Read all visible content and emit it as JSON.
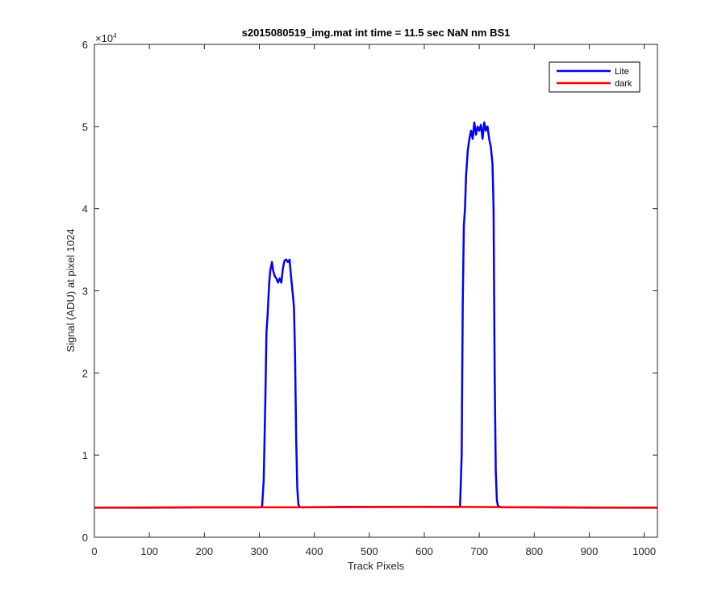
{
  "chart_data": {
    "type": "line",
    "title": "s2015080519_img.mat int time = 11.5 sec  NaN nm BS1",
    "xlabel": "Track Pixels",
    "ylabel": "Signal (ADU) at pixel 1024",
    "y_exponent_label": "×10",
    "y_exponent_power": "4",
    "xlim": [
      0,
      1024
    ],
    "ylim": [
      0,
      60000
    ],
    "xticks": [
      0,
      100,
      200,
      300,
      400,
      500,
      600,
      700,
      800,
      900,
      1000
    ],
    "xtick_labels": [
      "0",
      "100",
      "200",
      "300",
      "400",
      "500",
      "600",
      "700",
      "800",
      "900",
      "1000"
    ],
    "yticks": [
      0,
      10000,
      20000,
      30000,
      40000,
      50000,
      60000
    ],
    "ytick_labels": [
      "0",
      "1",
      "2",
      "3",
      "4",
      "5",
      "6"
    ],
    "grid": false,
    "legend_position": "top-right",
    "series": [
      {
        "name": "Lite",
        "color": "#0000ff",
        "x": [
          0,
          100,
          200,
          300,
          305,
          308,
          311,
          313,
          315,
          318,
          320,
          323,
          325,
          328,
          331,
          334,
          337,
          340,
          343,
          346,
          349,
          352,
          355,
          358,
          361,
          363,
          365,
          367,
          369,
          371,
          373,
          376,
          380,
          450,
          500,
          550,
          600,
          665,
          668,
          670,
          672,
          674,
          676,
          679,
          682,
          685,
          688,
          691,
          694,
          697,
          700,
          703,
          706,
          709,
          712,
          715,
          718,
          721,
          724,
          726,
          728,
          730,
          732,
          734,
          740,
          800,
          900,
          1024
        ],
        "y": [
          3600,
          3600,
          3650,
          3650,
          3700,
          7000,
          17000,
          25000,
          27000,
          31000,
          32500,
          33500,
          32500,
          31800,
          31500,
          31000,
          31500,
          31000,
          32800,
          33700,
          33800,
          33500,
          33800,
          31500,
          29500,
          28000,
          22000,
          12000,
          6000,
          4000,
          3700,
          3650,
          3650,
          3700,
          3700,
          3700,
          3700,
          3700,
          10000,
          29000,
          38000,
          40000,
          44000,
          47000,
          48500,
          49500,
          48500,
          50500,
          49000,
          50000,
          49500,
          50200,
          48500,
          50500,
          49500,
          50000,
          48500,
          47500,
          45500,
          40000,
          20000,
          8000,
          4500,
          3800,
          3650,
          3650,
          3600,
          3600
        ]
      },
      {
        "name": "dark",
        "color": "#ff0000",
        "x": [
          0,
          100,
          200,
          300,
          400,
          500,
          600,
          700,
          800,
          900,
          1024
        ],
        "y": [
          3600,
          3620,
          3650,
          3650,
          3650,
          3680,
          3700,
          3680,
          3650,
          3620,
          3600
        ]
      }
    ]
  }
}
